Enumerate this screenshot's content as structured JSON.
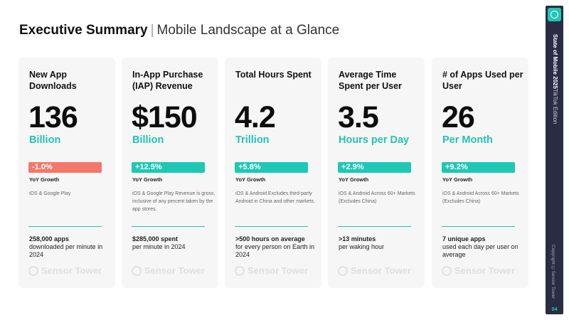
{
  "header": {
    "title": "Executive Summary",
    "separator": "|",
    "subtitle": "Mobile Landscape at a Glance"
  },
  "cards": [
    {
      "title": "New App Downloads",
      "value": "136",
      "unit": "Billion",
      "growth": "-1.0%",
      "growth_type": "negative",
      "yoy_label": "YoY Growth",
      "note": "iOS & Google Play",
      "stat_bold": "258,000 apps",
      "stat_text": "downloaded per minute in 2024",
      "watermark": "Sensor Tower"
    },
    {
      "title": "In-App Purchase (IAP) Revenue",
      "value": "$150",
      "unit": "Billion",
      "growth": "+12.5%",
      "growth_type": "positive",
      "yoy_label": "YoY Growth",
      "note": "iOS & Google Play Revenue is gross, inclusive of any percent taken by the app stores.",
      "stat_bold": "$285,000 spent",
      "stat_text": "per minute in 2024",
      "watermark": "Sensor Tower"
    },
    {
      "title": "Total Hours Spent",
      "value": "4.2",
      "unit": "Trillion",
      "growth": "+5.8%",
      "growth_type": "positive",
      "yoy_label": "YoY Growth",
      "note": "iOS & Android Excludes third-party Android in China and other markets.",
      "stat_bold": ">500 hours on average",
      "stat_text": "for every person on Earth in 2024",
      "watermark": "Sensor Tower"
    },
    {
      "title": "Average Time Spent per User",
      "value": "3.5",
      "unit": "Hours per Day",
      "growth": "+2.9%",
      "growth_type": "positive",
      "yoy_label": "YoY Growth",
      "note": "iOS & Android Across 60+ Markets (Excludes China)",
      "stat_bold": ">13 minutes",
      "stat_text": "per waking hour",
      "watermark": "Sensor Tower"
    },
    {
      "title": "# of Apps Used per User",
      "value": "26",
      "unit": "Per Month",
      "growth": "+9.2%",
      "growth_type": "positive",
      "yoy_label": "YoY Growth",
      "note": "iOS & Android Across 60+ Markets (Excludes China)",
      "stat_bold": "7 unique apps",
      "stat_text": "used each day per user on average",
      "watermark": "Sensor Tower"
    }
  ],
  "sidebar": {
    "report_title": "State of Mobile 2025",
    "edition": "TikTok Edition",
    "copyright": "Copyright ©Sensor Tower",
    "page_number": "04",
    "logo_icon": "sensor-tower-logo-icon"
  },
  "colors": {
    "accent": "#1ec8b4",
    "negative": "#f3776a",
    "sidebar_bg": "#292c42",
    "card_bg": "#f6f6f6"
  }
}
